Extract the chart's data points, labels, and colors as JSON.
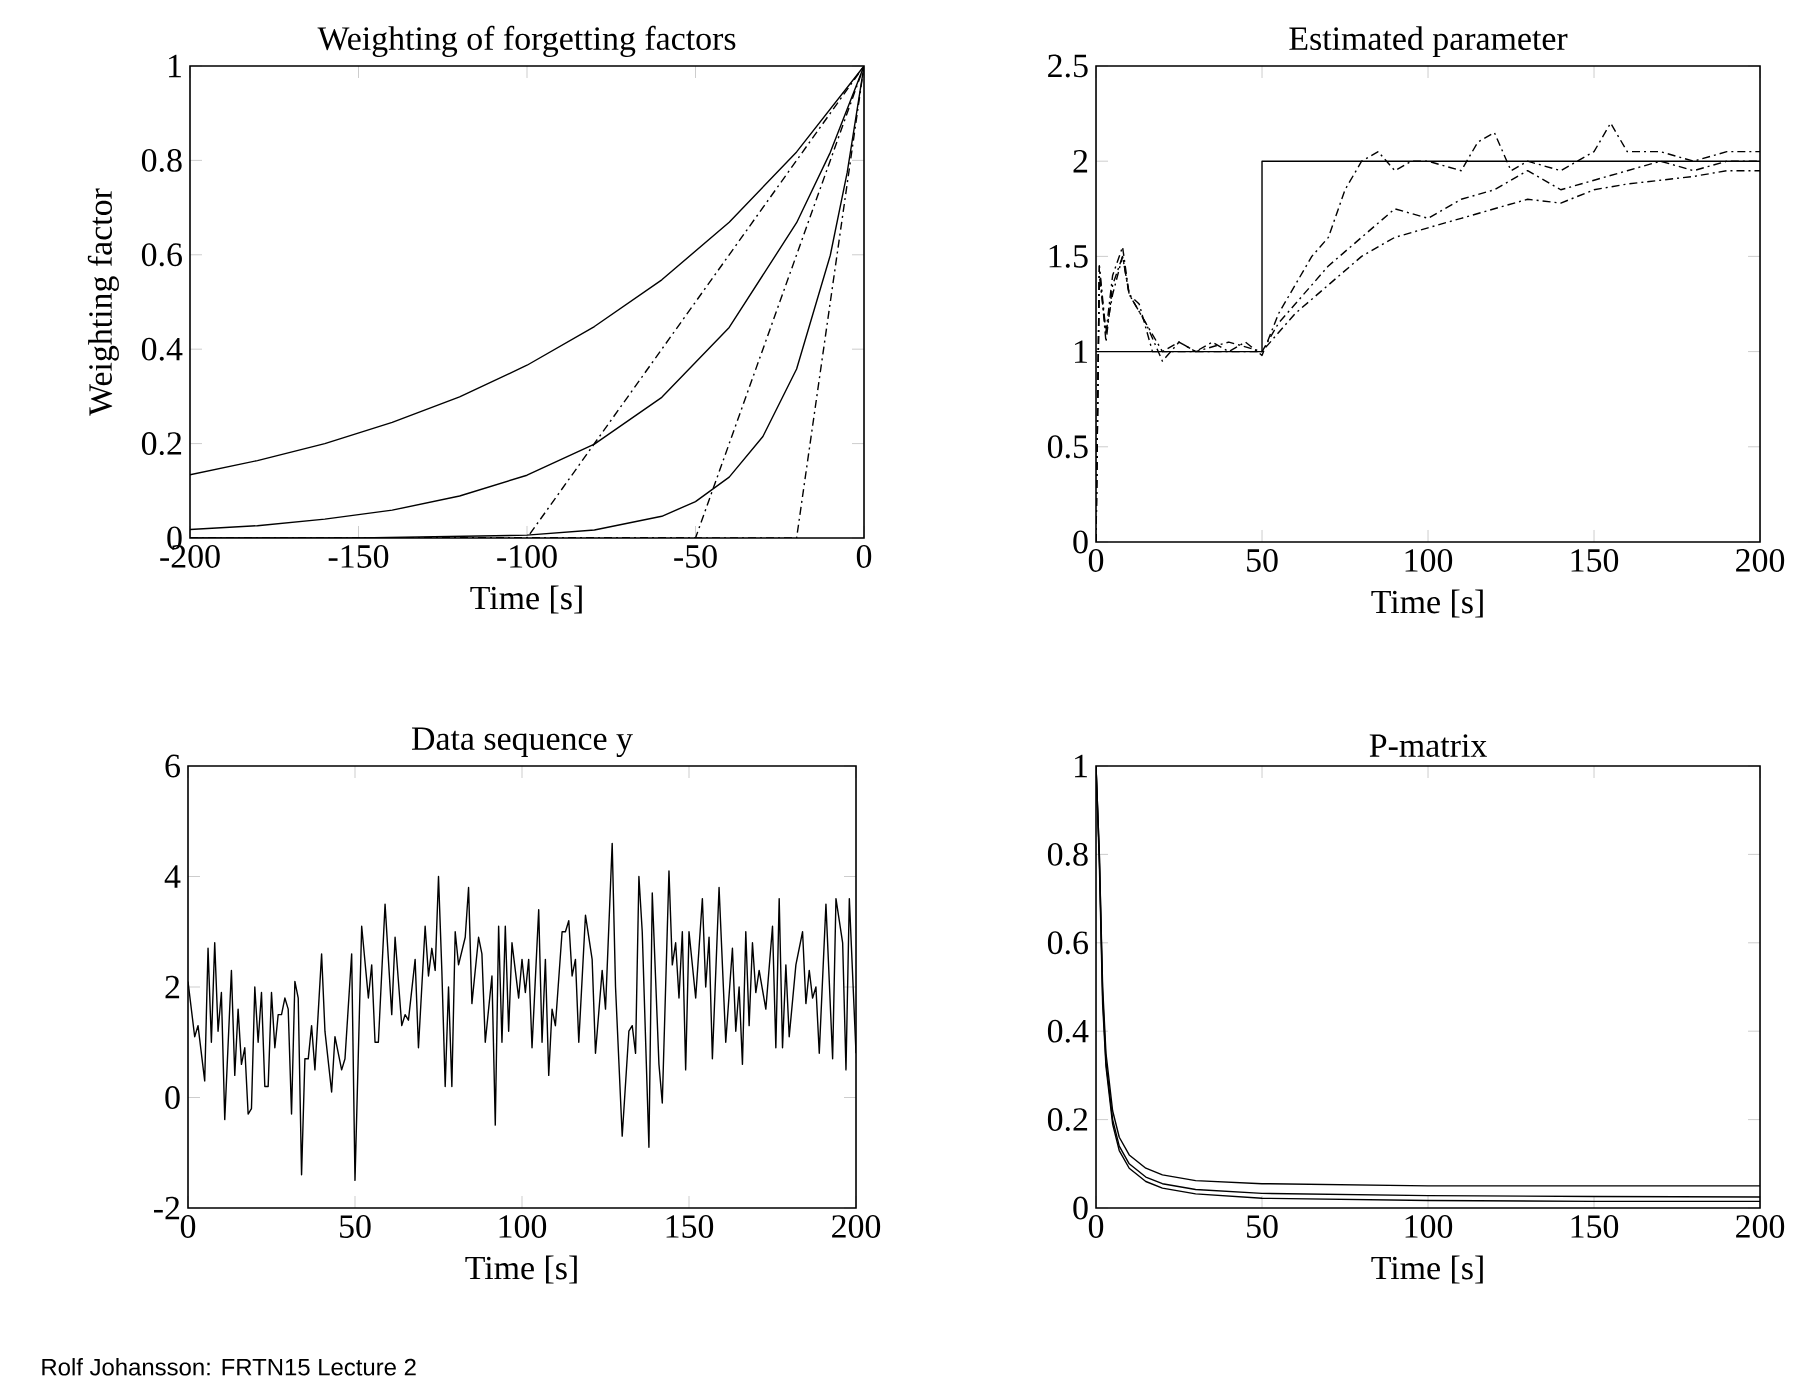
{
  "chart_data": [
    {
      "type": "line",
      "title": "Weighting of forgetting factors",
      "xlabel": "Time [s]",
      "ylabel": "Weighting factor",
      "xlim": [
        -200,
        0
      ],
      "ylim": [
        0,
        1
      ],
      "xticks": [
        -200,
        -150,
        -100,
        -50,
        0
      ],
      "yticks": [
        0,
        0.2,
        0.4,
        0.6,
        0.8,
        1
      ],
      "series": [
        {
          "color": "#000000",
          "line_style": "solid",
          "x": [
            -200,
            -180,
            -160,
            -140,
            -120,
            -100,
            -80,
            -60,
            -40,
            -20,
            0
          ],
          "values": [
            0.134,
            0.164,
            0.2,
            0.245,
            0.299,
            0.366,
            0.448,
            0.547,
            0.669,
            0.818,
            1
          ]
        },
        {
          "color": "#000000",
          "line_style": "solid",
          "x": [
            -200,
            -180,
            -160,
            -140,
            -120,
            -100,
            -80,
            -60,
            -40,
            -20,
            -10,
            0
          ],
          "values": [
            0.018,
            0.026,
            0.04,
            0.059,
            0.089,
            0.133,
            0.199,
            0.298,
            0.446,
            0.668,
            0.817,
            1
          ]
        },
        {
          "color": "#000000",
          "line_style": "solid",
          "x": [
            -200,
            -150,
            -100,
            -80,
            -60,
            -50,
            -40,
            -30,
            -20,
            -10,
            -5,
            0
          ],
          "values": [
            0,
            0,
            0.006,
            0.017,
            0.046,
            0.077,
            0.129,
            0.215,
            0.358,
            0.599,
            0.774,
            1
          ]
        },
        {
          "color": "#000000",
          "line_style": "dashed",
          "x": [
            -200,
            -100,
            0
          ],
          "values": [
            0,
            0,
            1
          ]
        },
        {
          "color": "#000000",
          "line_style": "dashed",
          "x": [
            -200,
            -50,
            0
          ],
          "values": [
            0,
            0,
            1
          ]
        },
        {
          "color": "#000000",
          "line_style": "dashed",
          "x": [
            -200,
            -20,
            0
          ],
          "values": [
            0,
            0,
            1
          ]
        }
      ]
    },
    {
      "type": "line",
      "title": "Estimated parameter",
      "xlabel": "Time [s]",
      "xlim": [
        0,
        200
      ],
      "ylim": [
        0,
        2.5
      ],
      "xticks": [
        0,
        50,
        100,
        150,
        200
      ],
      "yticks": [
        0,
        0.5,
        1,
        1.5,
        2,
        2.5
      ],
      "series": [
        {
          "color": "#000000",
          "line_style": "solid",
          "x": [
            0,
            50,
            50,
            200
          ],
          "values": [
            1,
            1,
            2,
            2
          ]
        },
        {
          "color": "#000000",
          "line_style": "dashed",
          "x": [
            0,
            1,
            3,
            5,
            8,
            10,
            13,
            17,
            20,
            25,
            30,
            35,
            40,
            45,
            50,
            55,
            60,
            65,
            70,
            75,
            80,
            85,
            90,
            95,
            100,
            110,
            115,
            120,
            125,
            130,
            140,
            150,
            155,
            160,
            170,
            180,
            190,
            200
          ],
          "values": [
            0,
            1.45,
            1.1,
            1.4,
            1.55,
            1.3,
            1.25,
            1.0,
            1.0,
            1.05,
            1.0,
            1.05,
            1.0,
            1.05,
            0.98,
            1.2,
            1.35,
            1.5,
            1.6,
            1.85,
            2.0,
            2.05,
            1.95,
            2.0,
            2.0,
            1.95,
            2.1,
            2.15,
            1.95,
            2.0,
            1.95,
            2.05,
            2.2,
            2.05,
            2.05,
            2.0,
            2.05,
            2.05
          ]
        },
        {
          "color": "#000000",
          "line_style": "dashed",
          "x": [
            0,
            1,
            3,
            5,
            8,
            10,
            15,
            20,
            25,
            30,
            40,
            50,
            55,
            60,
            70,
            80,
            90,
            100,
            110,
            120,
            130,
            140,
            150,
            160,
            170,
            180,
            190,
            200
          ],
          "values": [
            0,
            1.45,
            1.05,
            1.35,
            1.5,
            1.3,
            1.15,
            0.95,
            1.05,
            1.0,
            1.05,
            1.0,
            1.15,
            1.25,
            1.45,
            1.6,
            1.75,
            1.7,
            1.8,
            1.85,
            1.95,
            1.85,
            1.9,
            1.95,
            2.0,
            1.95,
            2.0,
            2.0
          ]
        },
        {
          "color": "#000000",
          "line_style": "dashed",
          "x": [
            0,
            1,
            3,
            5,
            8,
            10,
            15,
            20,
            30,
            40,
            50,
            55,
            60,
            70,
            80,
            90,
            100,
            110,
            120,
            130,
            140,
            150,
            160,
            170,
            180,
            190,
            200
          ],
          "values": [
            0,
            1.4,
            1.1,
            1.3,
            1.5,
            1.3,
            1.15,
            1.0,
            1.0,
            1.0,
            1.0,
            1.1,
            1.2,
            1.35,
            1.5,
            1.6,
            1.65,
            1.7,
            1.75,
            1.8,
            1.78,
            1.85,
            1.88,
            1.9,
            1.92,
            1.95,
            1.95
          ]
        }
      ]
    },
    {
      "type": "line",
      "title": "Data sequence y",
      "xlabel": "Time [s]",
      "xlim": [
        0,
        200
      ],
      "ylim": [
        -2,
        6
      ],
      "xticks": [
        0,
        50,
        100,
        150,
        200
      ],
      "yticks": [
        -2,
        0,
        2,
        4,
        6
      ],
      "annotations": [
        "Rolf Johansson: FRTN15 Lecture 2"
      ],
      "series": [
        {
          "color": "#000000",
          "line_style": "solid",
          "x": [
            0,
            2,
            3,
            5,
            6,
            7,
            8,
            9,
            10,
            11,
            13,
            14,
            15,
            16,
            17,
            18,
            19,
            20,
            21,
            22,
            23,
            24,
            25,
            26,
            27,
            28,
            29,
            30,
            31,
            32,
            33,
            34,
            35,
            36,
            37,
            38,
            40,
            41,
            43,
            44,
            46,
            47,
            49,
            50,
            52,
            54,
            55,
            56,
            57,
            59,
            61,
            62,
            64,
            65,
            66,
            68,
            69,
            71,
            72,
            73,
            74,
            75,
            76,
            77,
            78,
            79,
            80,
            81,
            83,
            84,
            85,
            87,
            88,
            89,
            91,
            92,
            93,
            94,
            95,
            96,
            97,
            99,
            100,
            101,
            102,
            103,
            105,
            106,
            107,
            108,
            109,
            110,
            112,
            113,
            114,
            115,
            116,
            117,
            119,
            121,
            122,
            124,
            125,
            127,
            128,
            130,
            132,
            133,
            134,
            135,
            136,
            138,
            139,
            141,
            142,
            144,
            145,
            146,
            147,
            148,
            149,
            150,
            152,
            154,
            155,
            156,
            157,
            159,
            161,
            163,
            164,
            165,
            166,
            167,
            168,
            169,
            170,
            171,
            173,
            175,
            176,
            177,
            178,
            179,
            180,
            182,
            184,
            185,
            186,
            187,
            188,
            189,
            191,
            193,
            194,
            196,
            197,
            198,
            200
          ],
          "values": [
            2.1,
            1.1,
            1.3,
            0.3,
            2.7,
            1.0,
            2.8,
            1.2,
            1.9,
            -0.4,
            2.3,
            0.4,
            1.6,
            0.6,
            0.9,
            -0.3,
            -0.2,
            2.0,
            1.0,
            1.9,
            0.2,
            0.2,
            1.9,
            0.9,
            1.5,
            1.5,
            1.8,
            1.6,
            -0.3,
            2.1,
            1.8,
            -1.4,
            0.7,
            0.7,
            1.3,
            0.5,
            2.6,
            1.2,
            0.1,
            1.1,
            0.5,
            0.7,
            2.6,
            -1.5,
            3.1,
            1.8,
            2.4,
            1.0,
            1.0,
            3.5,
            1.5,
            2.9,
            1.3,
            1.5,
            1.4,
            2.5,
            0.9,
            3.1,
            2.2,
            2.7,
            2.3,
            4.0,
            2.3,
            0.2,
            2.0,
            0.2,
            3.0,
            2.4,
            2.9,
            3.8,
            1.7,
            2.9,
            2.6,
            1.0,
            2.2,
            -0.5,
            3.1,
            1.0,
            3.1,
            1.2,
            2.8,
            1.8,
            2.5,
            1.9,
            2.5,
            0.9,
            3.4,
            1.0,
            2.5,
            0.4,
            1.6,
            1.3,
            3.0,
            3.0,
            3.2,
            2.2,
            2.5,
            1.0,
            3.3,
            2.5,
            0.8,
            2.3,
            1.6,
            4.6,
            2.0,
            -0.7,
            1.2,
            1.3,
            0.8,
            4.0,
            3.0,
            -0.9,
            3.7,
            0.6,
            -0.1,
            4.1,
            2.4,
            2.8,
            1.8,
            3.0,
            0.5,
            3.0,
            1.8,
            3.6,
            2.0,
            2.9,
            0.7,
            3.8,
            1.0,
            2.7,
            1.2,
            2.0,
            0.6,
            3.0,
            1.3,
            2.8,
            1.9,
            2.3,
            1.6,
            3.1,
            0.9,
            3.6,
            0.9,
            2.4,
            1.1,
            2.4,
            3.0,
            1.7,
            2.3,
            1.8,
            2.0,
            0.8,
            3.5,
            0.7,
            3.6,
            2.8,
            0.5,
            3.6,
            0.8
          ]
        }
      ]
    },
    {
      "type": "line",
      "title": "P-matrix",
      "xlabel": "Time [s]",
      "xlim": [
        0,
        200
      ],
      "ylim": [
        0,
        1
      ],
      "xticks": [
        0,
        50,
        100,
        150,
        200
      ],
      "yticks": [
        0,
        0.2,
        0.4,
        0.6,
        0.8,
        1
      ],
      "series": [
        {
          "color": "#000000",
          "line_style": "solid",
          "x": [
            0,
            1,
            2,
            3,
            5,
            7,
            10,
            15,
            20,
            30,
            50,
            100,
            150,
            200
          ],
          "values": [
            1,
            0.8,
            0.5,
            0.35,
            0.22,
            0.16,
            0.12,
            0.09,
            0.075,
            0.062,
            0.055,
            0.05,
            0.05,
            0.05
          ]
        },
        {
          "color": "#000000",
          "line_style": "solid",
          "x": [
            0,
            1,
            2,
            3,
            5,
            7,
            10,
            15,
            20,
            30,
            50,
            100,
            150,
            200
          ],
          "values": [
            1,
            0.8,
            0.48,
            0.33,
            0.2,
            0.14,
            0.1,
            0.07,
            0.055,
            0.042,
            0.033,
            0.028,
            0.026,
            0.025
          ]
        },
        {
          "color": "#000000",
          "line_style": "solid",
          "x": [
            0,
            1,
            2,
            3,
            5,
            7,
            10,
            15,
            20,
            30,
            50,
            100,
            150,
            200
          ],
          "values": [
            1,
            0.78,
            0.46,
            0.32,
            0.19,
            0.13,
            0.09,
            0.06,
            0.045,
            0.032,
            0.022,
            0.017,
            0.015,
            0.015
          ]
        }
      ]
    }
  ]
}
